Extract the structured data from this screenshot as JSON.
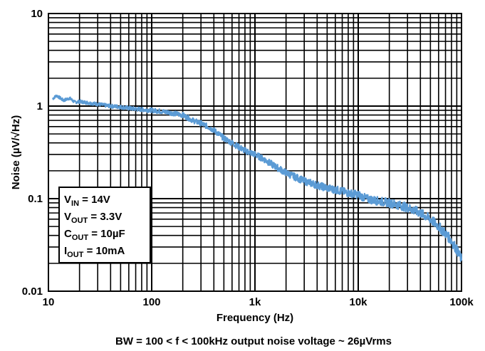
{
  "chart_data": {
    "type": "line",
    "xscale": "log",
    "yscale": "log",
    "xlim": [
      10,
      100000
    ],
    "ylim": [
      0.01,
      10
    ],
    "xlabel": "Frequency (Hz)",
    "ylabel": "Noise (µV/√Hz)",
    "caption": "BW = 100 < f < 100kHz output noise voltage ~ 26µVrms",
    "x_ticks": [
      {
        "value": 10,
        "label": "10"
      },
      {
        "value": 100,
        "label": "100"
      },
      {
        "value": 1000,
        "label": "1k"
      },
      {
        "value": 10000,
        "label": "10k"
      },
      {
        "value": 100000,
        "label": "100k"
      }
    ],
    "y_ticks": [
      {
        "value": 0.01,
        "label": "0.01"
      },
      {
        "value": 0.1,
        "label": "0.1"
      },
      {
        "value": 1,
        "label": "1"
      },
      {
        "value": 10,
        "label": "10"
      }
    ],
    "grid": true,
    "line_color": "#5b9bd5",
    "conditions": [
      {
        "base": "V",
        "sub": "IN",
        "rest": " = 14V"
      },
      {
        "base": "V",
        "sub": "OUT",
        "rest": " = 3.3V"
      },
      {
        "base": "C",
        "sub": "OUT",
        "rest": " = 10µF"
      },
      {
        "base": "I",
        "sub": "OUT",
        "rest": " = 10mA"
      }
    ],
    "series": [
      {
        "x": [
          11,
          12,
          14,
          16,
          18,
          20,
          25,
          30,
          35,
          40,
          50,
          60,
          70,
          80,
          100,
          120,
          150,
          200,
          250,
          300,
          350,
          400,
          500,
          600,
          700,
          800,
          1000,
          1200,
          1500,
          2000,
          2500,
          3000,
          4000,
          5000,
          6000,
          7000,
          8000,
          10000,
          12000,
          15000,
          20000,
          25000,
          30000,
          40000,
          50000,
          60000,
          70000,
          80000,
          90000,
          100000
        ],
        "y": [
          1.2,
          1.3,
          1.15,
          1.22,
          1.1,
          1.12,
          1.08,
          1.05,
          1.02,
          1.0,
          0.98,
          0.95,
          0.93,
          0.92,
          0.9,
          0.88,
          0.85,
          0.8,
          0.7,
          0.65,
          0.6,
          0.55,
          0.45,
          0.4,
          0.36,
          0.33,
          0.3,
          0.27,
          0.23,
          0.19,
          0.17,
          0.155,
          0.14,
          0.13,
          0.125,
          0.12,
          0.115,
          0.11,
          0.1,
          0.095,
          0.09,
          0.085,
          0.08,
          0.07,
          0.06,
          0.05,
          0.042,
          0.035,
          0.028,
          0.022
        ]
      }
    ]
  }
}
